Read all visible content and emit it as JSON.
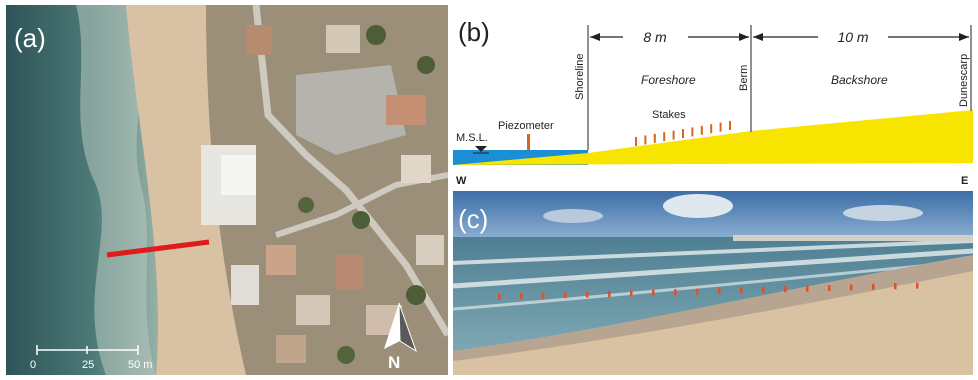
{
  "panel_a": {
    "label": "(a)",
    "scale_ticks": [
      "0",
      "25",
      "50 m"
    ],
    "north_label": "N",
    "colors": {
      "transect": "#e01b1b"
    }
  },
  "panel_b": {
    "label": "(b)",
    "dimension_1": "8 m",
    "dimension_2": "10 m",
    "shoreline": "Shoreline",
    "berm": "Berm",
    "dunescarp": "Dunescarp",
    "foreshore": "Foreshore",
    "backshore": "Backshore",
    "piezometer": "Piezometer",
    "stakes": "Stakes",
    "msl": "M.S.L.",
    "west": "W",
    "east": "E",
    "colors": {
      "sea": "#1a8fd6",
      "sand": "#f7e400",
      "stakes": "#d9661a"
    }
  },
  "panel_c": {
    "label": "(c)"
  }
}
